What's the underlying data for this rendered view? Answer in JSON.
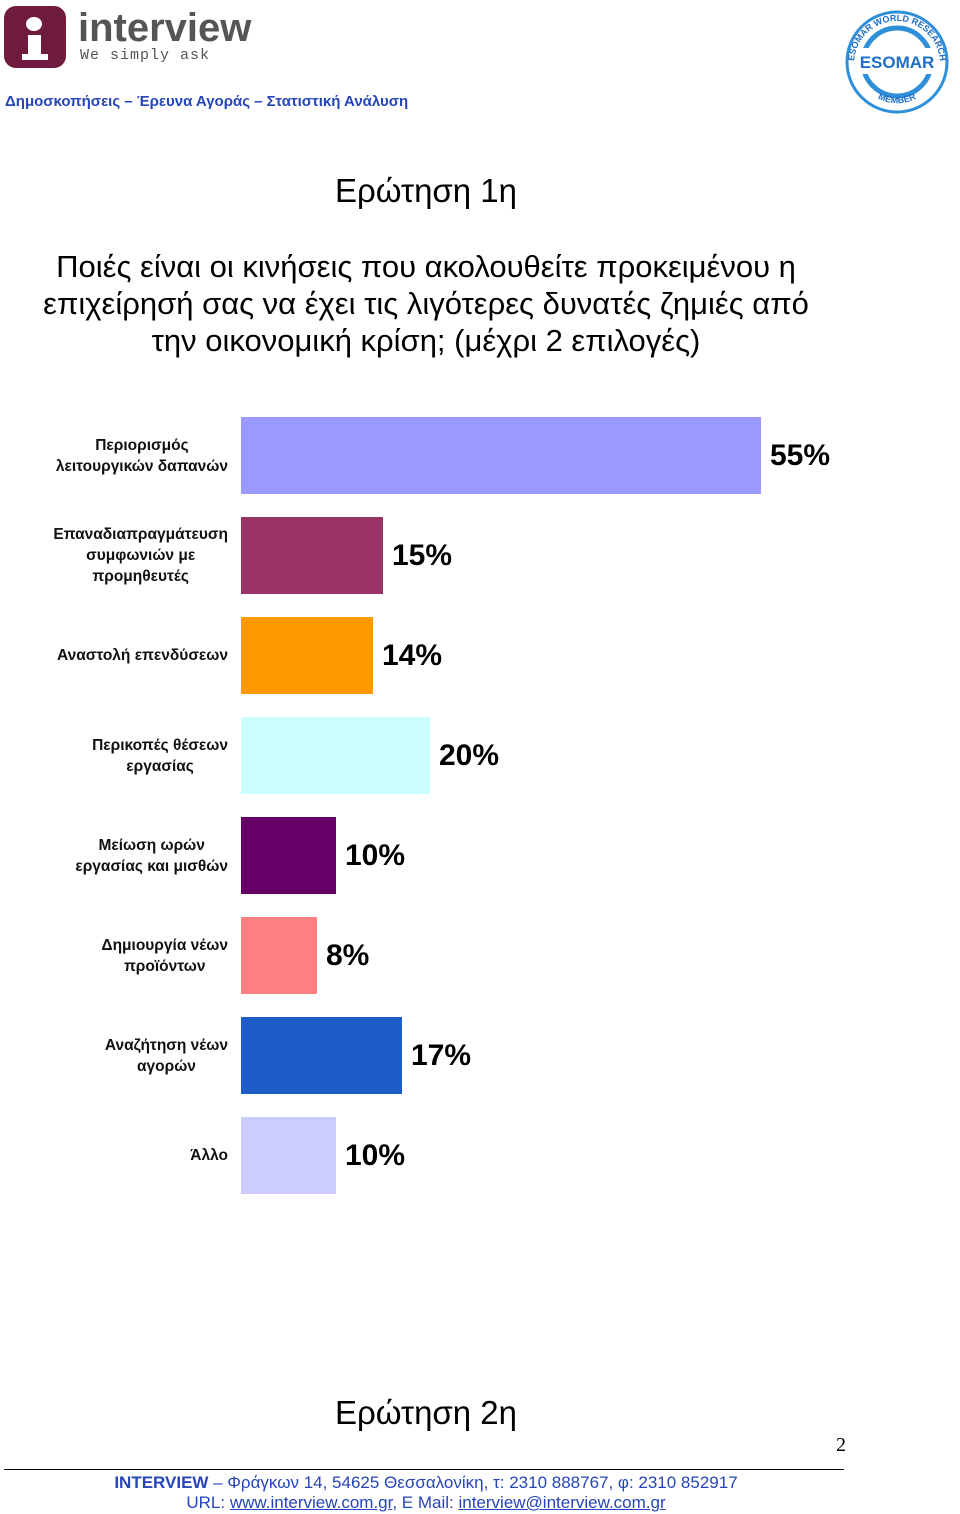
{
  "header": {
    "brand_name": "interview",
    "tagline": "We simply ask",
    "subtitle": "Δημοσκοπήσεις – Έρευνα Αγοράς – Στατιστική Ανάλυση",
    "esomar_text": "ESOMAR",
    "esomar_ring_top": "ESOMAR WORLD RESEARCH",
    "esomar_ring_bottom": "MEMBER"
  },
  "question1": {
    "title": "Ερώτηση 1η",
    "text_lines": [
      "Ποιές είναι οι κινήσεις που ακολουθείτε προκειμένου η",
      "επιχείρησή σας να έχει τις λιγότερες δυνατές ζημιές από",
      "την οικονομική κρίση; (μέχρι 2 επιλογές)"
    ]
  },
  "chart_data": {
    "type": "bar",
    "orientation": "horizontal",
    "title": "",
    "xlabel": "",
    "ylabel": "",
    "xlim": [
      0,
      55
    ],
    "grid": false,
    "legend": "none",
    "value_suffix": "%",
    "categories": [
      [
        "Περιορισμός",
        "λειτουργικών δαπανών"
      ],
      [
        "Επαναδιαπραγμάτευση",
        "συμφωνιών με",
        "προμηθευτές"
      ],
      [
        "Αναστολή επενδύσεων"
      ],
      [
        "Περικοπές θέσεων",
        "εργασίας"
      ],
      [
        "Μείωση ωρών",
        "εργασίας και μισθών"
      ],
      [
        "Δημιουργία νέων",
        "προϊόντων"
      ],
      [
        "Αναζήτηση νέων",
        "αγορών"
      ],
      [
        "Άλλο"
      ]
    ],
    "values": [
      55,
      15,
      14,
      20,
      10,
      8,
      17,
      10
    ],
    "value_labels": [
      "55%",
      "15%",
      "14%",
      "20%",
      "10%",
      "8%",
      "17%",
      "10%"
    ],
    "colors": [
      "#9999ff",
      "#993366",
      "#ff9900",
      "#ccffff",
      "#660066",
      "#ff8080",
      "#1e5cc8",
      "#ccccff"
    ]
  },
  "question2": {
    "title": "Ερώτηση 2η"
  },
  "footer": {
    "page_number": "2",
    "company": "INTERVIEW",
    "address": " – Φράγκων 14, 54625 Θεσσαλονίκη, τ: 2310 888767, φ: 2310 852917",
    "url_label": "URL: ",
    "url": "www.interview.com.gr",
    "email_label": ", E Mail: ",
    "email": "interview@interview.com.gr"
  }
}
